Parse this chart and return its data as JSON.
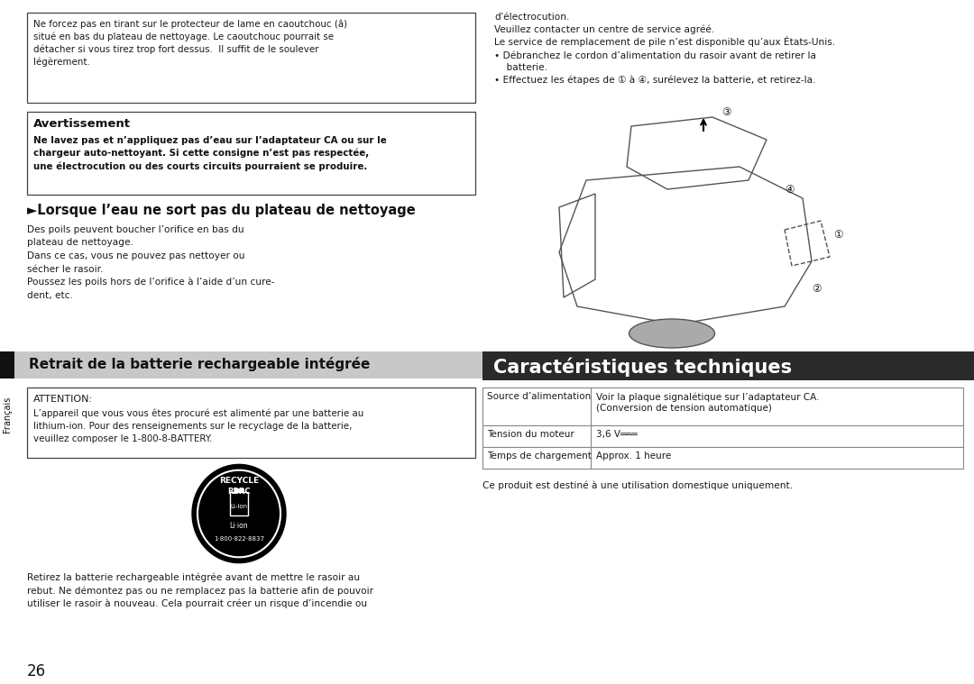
{
  "bg_color": "#ffffff",
  "top_box_text": "Ne forcez pas en tirant sur le protecteur de lame en caoutchouc (â)\nsitué en bas du plateau de nettoyage. Le caoutchouc pourrait se\ndétacher si vous tirez trop fort dessus.  Il suffit de le soulever\nlégèrement.",
  "warning_title": "Avertissement",
  "warning_body": "Ne lavez pas et n’appliquez pas d’eau sur l’adaptateur CA ou sur le\nchargeur auto-nettoyant. Si cette consigne n’est pas respectée,\nune électrocution ou des courts circuits pourraient se produire.",
  "section_heading": "►Lorsque l’eau ne sort pas du plateau de nettoyage",
  "section_body_lines": [
    "Des poils peuvent boucher l’orifice en bas du",
    "plateau de nettoyage.",
    "Dans ce cas, vous ne pouvez pas nettoyer ou",
    "sécher le rasoir.",
    "Poussez les poils hors de l’orifice à l’aide d’un cure-",
    "dent, etc."
  ],
  "gray_heading_text": "Retrait de la batterie rechargeable intégrée",
  "gray_heading_bg": "#c8c8c8",
  "attention_title": "ATTENTION:",
  "attention_body": "L’appareil que vous vous êtes procuré est alimenté par une batterie au\nlithium-ion. Pour des renseignements sur le recyclage de la batterie,\nveuillez composer le 1-800-8-BATTERY.",
  "bottom_text_left": "Retirez la batterie rechargeable intégrée avant de mettre le rasoir au\nrebut. Ne démontez pas ou ne remplacez pas la batterie afin de pouvoir\nutiliser le rasoir à nouveau. Cela pourrait créer un risque d’incendie ou",
  "page_number": "26",
  "side_label": "Français",
  "right_top_lines": [
    "d’électrocution.",
    "Veuillez contacter un centre de service agréé.",
    "Le service de remplacement de pile n’est disponible qu’aux États-Unis.",
    "• Débranchez le cordon d’alimentation du rasoir avant de retirer la",
    "    batterie.",
    "• Effectuez les étapes de ① à ④, surélevez la batterie, et retirez-la."
  ],
  "characteristics_title": "Caractéristiques techniques",
  "characteristics_bg": "#2a2a2a",
  "characteristics_text_color": "#ffffff",
  "table_row1_col1": "Source d’alimentation",
  "table_row1_col2_line1": "Voir la plaque signalétique sur l’adaptateur CA.",
  "table_row1_col2_line2": "(Conversion de tension automatique)",
  "table_row2_col1": "Tension du moteur",
  "table_row2_col2": "3,6 V═══",
  "table_row3_col1": "Temps de chargement",
  "table_row3_col2": "Approx. 1 heure",
  "table_footer": "Ce produit est destiné à une utilisation domestique uniquement."
}
